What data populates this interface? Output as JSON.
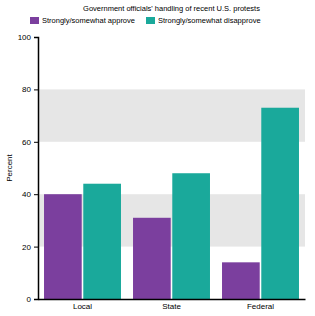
{
  "chart_data": {
    "type": "bar",
    "title": "Government officials' handling of recent U.S. protests",
    "y_label": "Percent",
    "categories": [
      "Local",
      "State",
      "Federal"
    ],
    "series": [
      {
        "name": "Strongly/somewhat approve",
        "color": "#7b3f9e",
        "values": [
          40,
          31,
          14
        ]
      },
      {
        "name": "Strongly/somewhat disapprove",
        "color": "#1aa99b",
        "values": [
          44,
          48,
          73
        ]
      }
    ],
    "ylim": [
      0,
      100
    ],
    "yticks": [
      0,
      20,
      40,
      60,
      80,
      100
    ],
    "grid": true,
    "legend": "top"
  }
}
